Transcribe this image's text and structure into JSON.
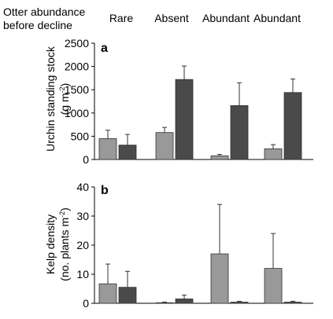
{
  "header": {
    "row_label_line1": "Otter abundance",
    "row_label_line2": "before decline",
    "groups": [
      "Rare",
      "Absent",
      "Abundant",
      "Abundant"
    ]
  },
  "colors": {
    "light_bar": "#999999",
    "dark_bar": "#4a4a4a"
  },
  "chart_data": [
    {
      "type": "bar",
      "panel_label": "a",
      "categories": [
        "Rare",
        "Absent",
        "Abundant",
        "Abundant"
      ],
      "ylabel_line1": "Urchin standing stock",
      "ylabel_line2_base": "(g m",
      "ylabel_line2_sup": "-2",
      "ylabel_line2_end": ")",
      "ylim": [
        0,
        2500
      ],
      "yticks": [
        0,
        500,
        1000,
        1500,
        2000,
        2500
      ],
      "series": [
        {
          "values": [
            450,
            580,
            80,
            230
          ],
          "errors": [
            180,
            110,
            30,
            90
          ]
        },
        {
          "values": [
            310,
            1720,
            1160,
            1440
          ],
          "errors": [
            230,
            290,
            490,
            290
          ]
        }
      ]
    },
    {
      "type": "bar",
      "panel_label": "b",
      "categories": [
        "Rare",
        "Absent",
        "Abundant",
        "Abundant"
      ],
      "ylabel_line1": "Kelp density",
      "ylabel_line2_base": "(no. plants m",
      "ylabel_line2_sup": "-2",
      "ylabel_line2_end": ")",
      "ylim": [
        0,
        40
      ],
      "yticks": [
        0,
        10,
        20,
        30,
        40
      ],
      "series": [
        {
          "values": [
            6.7,
            0.2,
            17.0,
            12.0
          ],
          "errors": [
            6.8,
            0.2,
            17.0,
            12.0
          ]
        },
        {
          "values": [
            5.5,
            1.5,
            0.4,
            0.4
          ],
          "errors": [
            5.5,
            1.3,
            0.3,
            0.3
          ]
        }
      ]
    }
  ]
}
